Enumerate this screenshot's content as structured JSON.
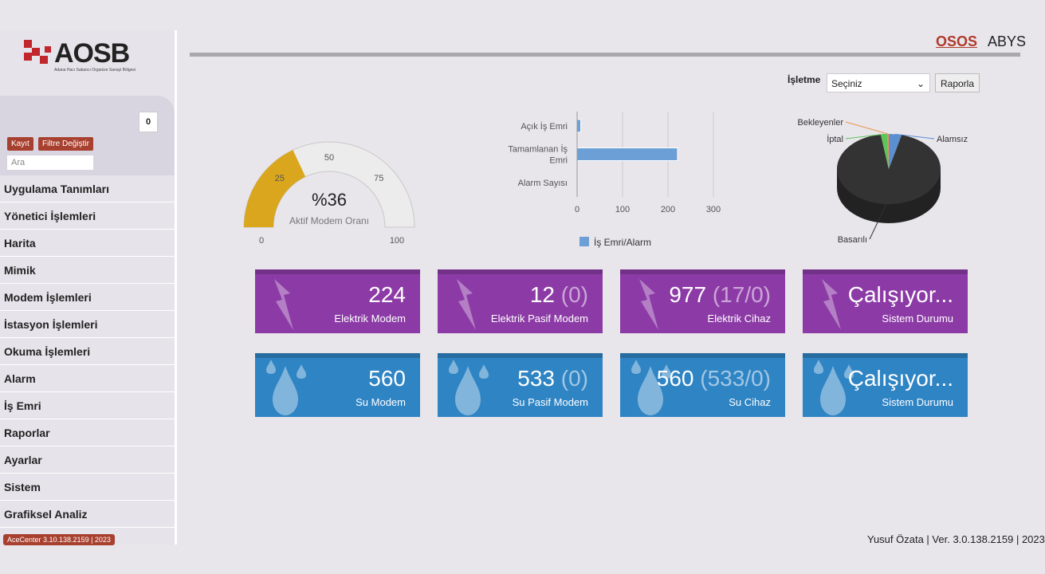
{
  "header": {
    "logo": "AOSB",
    "logo_subtitle": "Adana Hacı Sabancı Organize Sanayi Bölgesi",
    "nav": [
      "OSOS",
      "ABYS"
    ]
  },
  "sidebar": {
    "badge": "0",
    "buttons": [
      "Kayıt",
      "Filtre Değiştir"
    ],
    "search_placeholder": "Ara",
    "menu": [
      "Uygulama Tanımları",
      "Yönetici İşlemleri",
      "Harita",
      "Mimik",
      "Modem İşlemleri",
      "İstasyon İşlemleri",
      "Okuma İşlemleri",
      "Alarm",
      "İş Emri",
      "Raporlar",
      "Ayarlar",
      "Sistem",
      "Grafiksel Analiz"
    ],
    "footer_button": "AceCenter 3.10.138.2159 | 2023"
  },
  "filter": {
    "label": "İşletme",
    "select": "Seçiniz",
    "button": "Raporla"
  },
  "chart_data": [
    {
      "type": "gauge",
      "value": 36,
      "value_label": "%36",
      "caption": "Aktif Modem Oranı",
      "ylim": [
        0,
        100
      ],
      "yticks": [
        0,
        25,
        50,
        75,
        100
      ],
      "color": "#d9a61e"
    },
    {
      "type": "hbar",
      "categories": [
        "Açık İş Emri",
        "Tamamlanan İş Emri",
        "Alarm Sayısı"
      ],
      "series": [
        {
          "name": "İş Emri/Alarm",
          "color": "#6c9fd6",
          "values": [
            8,
            221,
            0
          ]
        }
      ],
      "xlim": [
        0,
        300
      ],
      "xticks": [
        0,
        100,
        200,
        300
      ],
      "grid": true
    },
    {
      "type": "pie",
      "categories": [
        "Alamsız",
        "Basarılı",
        "İptal",
        "Bekleyenler"
      ],
      "values": [
        4,
        93.5,
        2,
        0.5
      ],
      "colors": [
        "#5b8fd0",
        "#333333",
        "#5fc45a",
        "#e8964a"
      ]
    }
  ],
  "tiles": [
    {
      "value": "224",
      "detail": "",
      "label": "Elektrik Modem",
      "color": "#8c3ba6"
    },
    {
      "value": "12",
      "detail": "(0)",
      "label": "Elektrik Pasif Modem",
      "color": "#8c3ba6"
    },
    {
      "value": "977",
      "detail": "(17/0)",
      "label": "Elektrik Cihaz",
      "color": "#8c3ba6"
    },
    {
      "value": "Çalışıyor...",
      "detail": "",
      "label": "Sistem Durumu",
      "color": "#8c3ba6"
    },
    {
      "value": "560",
      "detail": "",
      "label": "Su Modem",
      "color": "#2f84c4"
    },
    {
      "value": "533",
      "detail": "(0)",
      "label": "Su Pasif Modem",
      "color": "#2f84c4"
    },
    {
      "value": "560",
      "detail": "(533/0)",
      "label": "Su Cihaz",
      "color": "#2f84c4"
    },
    {
      "value": "Çalışıyor...",
      "detail": "",
      "label": "Sistem Durumu",
      "color": "#2f84c4"
    }
  ],
  "footer": "Yusuf Özata | Ver. 3.0.138.2159 | 2023"
}
